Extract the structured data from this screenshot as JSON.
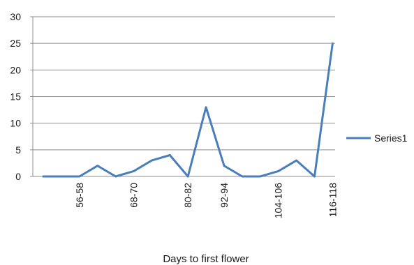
{
  "chart_data": {
    "type": "line",
    "title": "",
    "xlabel": "Days to first flower",
    "ylabel": "",
    "ylim": [
      0,
      30
    ],
    "y_ticks": [
      0,
      5,
      10,
      15,
      20,
      25,
      30
    ],
    "grid": "horizontal",
    "legend_position": "right",
    "x_tick_labels": [
      {
        "index": 2,
        "label": "56-58"
      },
      {
        "index": 5,
        "label": "68-70"
      },
      {
        "index": 8,
        "label": "80-82"
      },
      {
        "index": 10,
        "label": "92-94"
      },
      {
        "index": 13,
        "label": "104-106"
      },
      {
        "index": 16,
        "label": "116-118"
      }
    ],
    "series": [
      {
        "name": "Series1",
        "color": "#4a7ebb",
        "values": [
          0,
          0,
          0,
          2,
          0,
          1,
          3,
          4,
          0,
          13,
          2,
          0,
          0,
          1,
          3,
          0,
          25
        ]
      }
    ]
  }
}
